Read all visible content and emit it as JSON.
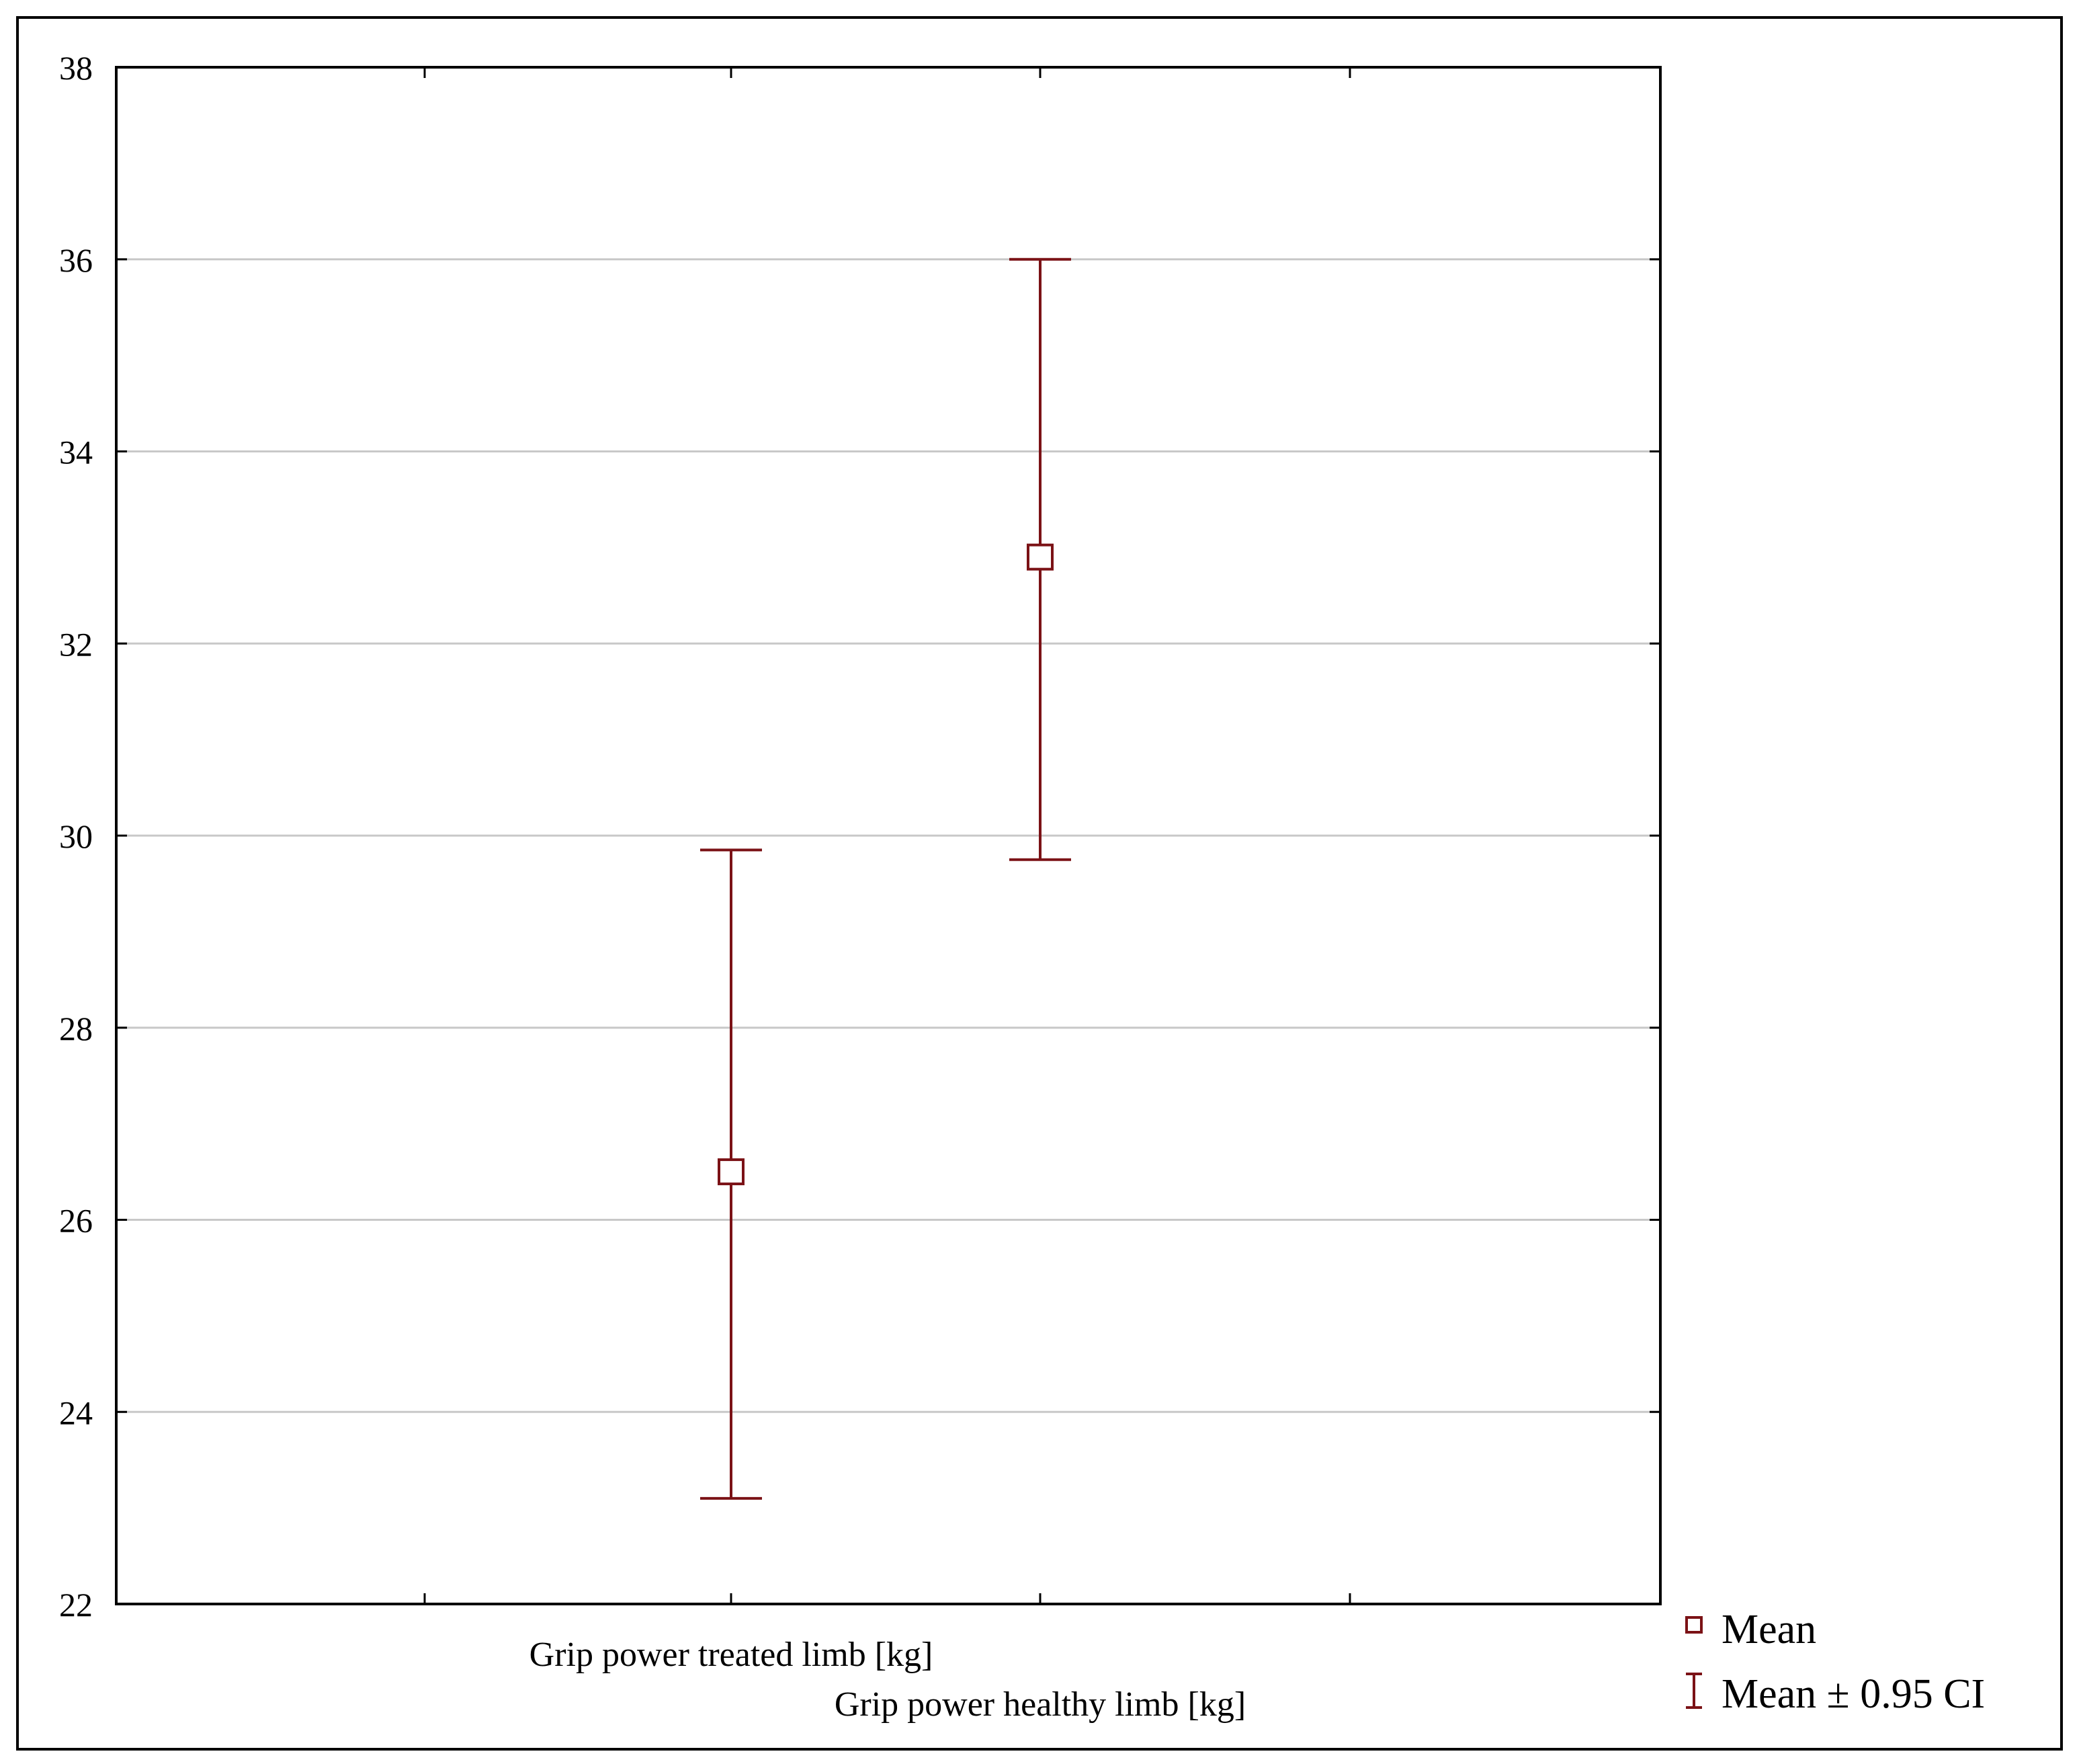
{
  "chart_data": {
    "type": "errorbar",
    "title": "",
    "xlabel": "",
    "ylabel": "",
    "ylim": [
      22,
      38
    ],
    "y_ticks": [
      "22",
      "24",
      "26",
      "28",
      "30",
      "32",
      "34",
      "36",
      "38"
    ],
    "grid": "horizontal",
    "categories": [
      "Grip power treated limb [kg]",
      "Grip power healthy limb [kg]"
    ],
    "series": [
      {
        "stat": "mean",
        "values": [
          26.5,
          32.9
        ]
      },
      {
        "stat": "ci_low",
        "values": [
          23.1,
          29.75
        ]
      },
      {
        "stat": "ci_high",
        "values": [
          29.85,
          36.0
        ]
      }
    ],
    "legend": {
      "position": "bottom-right",
      "entries": [
        "Mean",
        "Mean ± 0.95 CI"
      ]
    },
    "colors": {
      "marker": "#7b1216",
      "grid": "#c8c8c8",
      "axes": "#000000"
    }
  }
}
